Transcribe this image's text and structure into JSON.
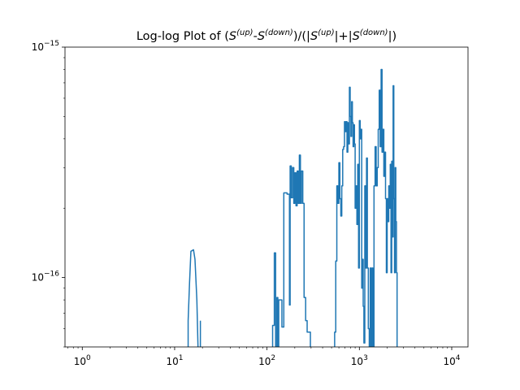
{
  "chart_data": {
    "type": "line",
    "title": {
      "prefix": "Log-log Plot of (",
      "s": "S",
      "sup_up": "(up)",
      "sup_down": "(down)",
      "dash": "-",
      "mid": ")/(|",
      "sep": "|+|",
      "end": "|)"
    },
    "xlabel": "",
    "ylabel": "",
    "xscale": "log",
    "yscale": "log",
    "xlim": [
      0.65,
      15000
    ],
    "ylim": [
      5e-17,
      1e-15
    ],
    "grid": false,
    "legend": "none",
    "x_ticks": [
      {
        "value": 1,
        "base": "10",
        "exp": "0"
      },
      {
        "value": 10,
        "base": "10",
        "exp": "1"
      },
      {
        "value": 100,
        "base": "10",
        "exp": "2"
      },
      {
        "value": 1000,
        "base": "10",
        "exp": "3"
      },
      {
        "value": 10000,
        "base": "10",
        "exp": "4"
      }
    ],
    "y_ticks": [
      {
        "value": 1e-16,
        "base": "10",
        "exp": "−16"
      },
      {
        "value": 1e-15,
        "base": "10",
        "exp": "−15"
      }
    ],
    "colors": {
      "line": "#1f77b4"
    },
    "series": [
      {
        "segments": [
          [
            [
              14.0,
              4e-17
            ],
            [
              14.0,
              6.5e-17
            ],
            [
              14.5,
              9.5e-17
            ],
            [
              15.0,
              1.3e-16
            ],
            [
              16.0,
              1.32e-16
            ],
            [
              16.6,
              1.2e-16
            ],
            [
              17.4,
              8e-17
            ],
            [
              17.9,
              5e-17
            ],
            [
              18.3,
              3.5e-17
            ]
          ],
          [
            [
              19.0,
              3.5e-17
            ],
            [
              19.0,
              6.5e-17
            ]
          ],
          [
            [
              115,
              3e-17
            ],
            [
              115,
              6.2e-17
            ],
            [
              120,
              6.2e-17
            ],
            [
              120,
              1.28e-16
            ],
            [
              124,
              1.28e-16
            ],
            [
              124,
              4e-17
            ],
            [
              128,
              4e-17
            ],
            [
              128,
              8.2e-17
            ],
            [
              131,
              8.2e-17
            ],
            [
              131,
              4e-17
            ],
            [
              134,
              4e-17
            ],
            [
              134,
              8e-17
            ],
            [
              137,
              8e-17
            ],
            [
              137,
              8e-17
            ],
            [
              145,
              8e-17
            ],
            [
              145,
              6.1e-17
            ],
            [
              152,
              6.1e-17
            ],
            [
              152,
              2.33e-16
            ],
            [
              165,
              2.33e-16
            ],
            [
              165,
              2.3e-16
            ],
            [
              175,
              2.3e-16
            ],
            [
              175,
              7.6e-17
            ],
            [
              178,
              7.6e-17
            ],
            [
              178,
              3.05e-16
            ],
            [
              183,
              3.05e-16
            ],
            [
              183,
              2.22e-16
            ],
            [
              189,
              2.22e-16
            ],
            [
              189,
              3e-16
            ],
            [
              195,
              3e-16
            ],
            [
              195,
              2.1e-16
            ],
            [
              200,
              2.1e-16
            ],
            [
              200,
              2.85e-16
            ],
            [
              206,
              2.85e-16
            ],
            [
              206,
              2.05e-16
            ],
            [
              212,
              2.05e-16
            ],
            [
              212,
              2.9e-16
            ],
            [
              218,
              2.9e-16
            ],
            [
              218,
              2.1e-16
            ],
            [
              224,
              2.1e-16
            ],
            [
              224,
              3.4e-16
            ],
            [
              230,
              3.4e-16
            ],
            [
              230,
              2.1e-16
            ],
            [
              236,
              2.1e-16
            ],
            [
              236,
              2.9e-16
            ],
            [
              244,
              2.9e-16
            ],
            [
              244,
              2.1e-16
            ],
            [
              252,
              2.1e-16
            ],
            [
              252,
              8.2e-17
            ],
            [
              262,
              8.2e-17
            ],
            [
              262,
              6.5e-17
            ],
            [
              272,
              6.5e-17
            ],
            [
              272,
              5.8e-17
            ],
            [
              282,
              5.8e-17
            ],
            [
              282,
              5.8e-17
            ],
            [
              295,
              5.8e-17
            ],
            [
              295,
              4e-17
            ]
          ],
          [
            [
              540,
              3e-17
            ],
            [
              540,
              5.8e-17
            ],
            [
              555,
              5.8e-17
            ],
            [
              555,
              1.18e-16
            ],
            [
              570,
              1.18e-16
            ],
            [
              570,
              2.5e-16
            ],
            [
              585,
              2.5e-16
            ],
            [
              585,
              2.1e-16
            ],
            [
              600,
              2.1e-16
            ],
            [
              600,
              3.15e-16
            ],
            [
              615,
              3.15e-16
            ],
            [
              615,
              2.2e-16
            ],
            [
              630,
              2.2e-16
            ],
            [
              630,
              1.85e-16
            ],
            [
              645,
              1.85e-16
            ],
            [
              645,
              2.5e-16
            ],
            [
              660,
              2.5e-16
            ],
            [
              660,
              3.6e-16
            ],
            [
              675,
              3.6e-16
            ],
            [
              675,
              3.7e-16
            ],
            [
              690,
              3.7e-16
            ],
            [
              690,
              4.75e-16
            ],
            [
              705,
              4.75e-16
            ],
            [
              705,
              4.3e-16
            ],
            [
              720,
              4.3e-16
            ],
            [
              720,
              4.75e-16
            ],
            [
              735,
              4.75e-16
            ],
            [
              735,
              3.5e-16
            ],
            [
              750,
              3.5e-16
            ],
            [
              750,
              4.7e-16
            ],
            [
              765,
              4.7e-16
            ],
            [
              765,
              3.8e-16
            ],
            [
              780,
              3.8e-16
            ],
            [
              780,
              6.7e-16
            ],
            [
              795,
              6.7e-16
            ],
            [
              795,
              5e-16
            ],
            [
              810,
              5e-16
            ],
            [
              810,
              4.1e-16
            ],
            [
              825,
              4.1e-16
            ],
            [
              825,
              5.8e-16
            ],
            [
              840,
              5.8e-16
            ],
            [
              840,
              4.7e-16
            ],
            [
              855,
              4.7e-16
            ],
            [
              855,
              3.7e-16
            ],
            [
              870,
              3.7e-16
            ],
            [
              870,
              4.6e-16
            ],
            [
              885,
              4.6e-16
            ],
            [
              885,
              3.8e-16
            ],
            [
              900,
              3.8e-16
            ],
            [
              900,
              2e-16
            ],
            [
              920,
              2e-16
            ],
            [
              920,
              2.5e-16
            ],
            [
              940,
              2.5e-16
            ],
            [
              940,
              1.7e-16
            ],
            [
              960,
              1.7e-16
            ],
            [
              960,
              3.1e-16
            ],
            [
              980,
              3.1e-16
            ],
            [
              980,
              1.1e-16
            ],
            [
              1000,
              1.1e-16
            ],
            [
              1000,
              4.8e-16
            ],
            [
              1020,
              4.8e-16
            ],
            [
              1020,
              4e-16
            ],
            [
              1040,
              4e-16
            ],
            [
              1040,
              4.4e-16
            ],
            [
              1060,
              4.4e-16
            ],
            [
              1060,
              9e-17
            ],
            [
              1080,
              9e-17
            ],
            [
              1080,
              1.2e-16
            ],
            [
              1100,
              1.2e-16
            ],
            [
              1100,
              7.5e-17
            ],
            [
              1120,
              7.5e-17
            ],
            [
              1120,
              5.2e-17
            ],
            [
              1145,
              5.2e-17
            ],
            [
              1145,
              2.5e-16
            ],
            [
              1170,
              2.5e-16
            ],
            [
              1170,
              1.1e-16
            ],
            [
              1195,
              1.1e-16
            ],
            [
              1195,
              3.3e-16
            ],
            [
              1220,
              3.3e-16
            ],
            [
              1220,
              1.1e-16
            ],
            [
              1250,
              1.1e-16
            ],
            [
              1250,
              6e-17
            ],
            [
              1280,
              6e-17
            ],
            [
              1280,
              3.8e-17
            ],
            [
              1310,
              3.8e-17
            ],
            [
              1310,
              1.1e-16
            ],
            [
              1340,
              1.1e-16
            ],
            [
              1340,
              3.8e-17
            ],
            [
              1370,
              3.8e-17
            ],
            [
              1370,
              1.1e-16
            ],
            [
              1400,
              1.1e-16
            ],
            [
              1400,
              4e-17
            ],
            [
              1440,
              4e-17
            ],
            [
              1440,
              2.5e-16
            ],
            [
              1480,
              2.5e-16
            ],
            [
              1480,
              3.7e-16
            ],
            [
              1520,
              3.7e-16
            ],
            [
              1520,
              2.5e-16
            ],
            [
              1560,
              2.5e-16
            ],
            [
              1560,
              3e-16
            ],
            [
              1600,
              3e-16
            ],
            [
              1600,
              4.4e-16
            ],
            [
              1640,
              4.4e-16
            ],
            [
              1640,
              6.5e-16
            ],
            [
              1680,
              6.5e-16
            ],
            [
              1680,
              3.7e-16
            ],
            [
              1720,
              3.7e-16
            ],
            [
              1720,
              8e-16
            ],
            [
              1760,
              8e-16
            ],
            [
              1760,
              3.5e-16
            ],
            [
              1800,
              3.5e-16
            ],
            [
              1800,
              4.4e-16
            ],
            [
              1840,
              4.4e-16
            ],
            [
              1840,
              2.75e-16
            ],
            [
              1880,
              2.75e-16
            ],
            [
              1880,
              3.5e-16
            ],
            [
              1920,
              3.5e-16
            ],
            [
              1920,
              2.2e-16
            ],
            [
              1960,
              2.2e-16
            ],
            [
              1960,
              1.05e-16
            ],
            [
              2000,
              1.05e-16
            ],
            [
              2000,
              2.2e-16
            ],
            [
              2040,
              2.2e-16
            ],
            [
              2040,
              1.75e-16
            ],
            [
              2080,
              1.75e-16
            ],
            [
              2080,
              2.5e-16
            ],
            [
              2120,
              2.5e-16
            ],
            [
              2120,
              2e-16
            ],
            [
              2160,
              2e-16
            ],
            [
              2160,
              3.1e-16
            ],
            [
              2200,
              3.1e-16
            ],
            [
              2200,
              1.05e-16
            ],
            [
              2240,
              1.05e-16
            ],
            [
              2240,
              3.2e-16
            ],
            [
              2280,
              3.2e-16
            ],
            [
              2280,
              1.5e-16
            ],
            [
              2320,
              1.5e-16
            ],
            [
              2320,
              6.8e-16
            ],
            [
              2360,
              6.8e-16
            ],
            [
              2360,
              2.2e-16
            ],
            [
              2400,
              2.2e-16
            ],
            [
              2400,
              1.05e-16
            ],
            [
              2440,
              1.05e-16
            ],
            [
              2440,
              3e-16
            ],
            [
              2480,
              3e-16
            ],
            [
              2480,
              1.75e-16
            ],
            [
              2520,
              1.75e-16
            ],
            [
              2520,
              1.05e-16
            ],
            [
              2560,
              1.05e-16
            ],
            [
              2560,
              3e-17
            ]
          ]
        ]
      }
    ]
  }
}
